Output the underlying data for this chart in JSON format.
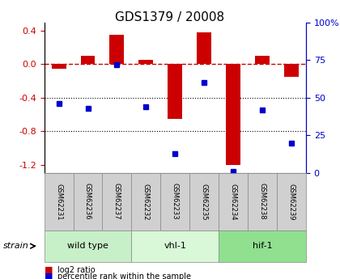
{
  "title": "GDS1379 / 20008",
  "samples": [
    "GSM62231",
    "GSM62236",
    "GSM62237",
    "GSM62232",
    "GSM62233",
    "GSM62235",
    "GSM62234",
    "GSM62238",
    "GSM62239"
  ],
  "log2_ratio": [
    -0.05,
    0.1,
    0.35,
    0.05,
    -0.65,
    0.38,
    -1.2,
    0.1,
    -0.15
  ],
  "percentile_rank": [
    46,
    43,
    72,
    44,
    13,
    60,
    1,
    42,
    20
  ],
  "groups": [
    {
      "label": "wild type",
      "start": 0,
      "end": 3,
      "color": "#c8f0c8"
    },
    {
      "label": "vhl-1",
      "start": 3,
      "end": 6,
      "color": "#d8f8d8"
    },
    {
      "label": "hif-1",
      "start": 6,
      "end": 9,
      "color": "#90e090"
    }
  ],
  "ylim_left": [
    -1.3,
    0.5
  ],
  "ylim_right": [
    0,
    100
  ],
  "yticks_left": [
    0.4,
    0.0,
    -0.4,
    -0.8,
    -1.2
  ],
  "yticks_right": [
    100,
    75,
    50,
    25,
    0
  ],
  "ytick_right_labels": [
    "100%",
    "75",
    "50",
    "25",
    "0"
  ],
  "left_color": "#cc0000",
  "right_color": "#0000cc",
  "bar_color": "#cc0000",
  "dot_color": "#0000cc",
  "hline_color": "#cc0000",
  "grid_color": "black",
  "bar_width": 0.5,
  "legend_log2": "log2 ratio",
  "legend_pct": "percentile rank within the sample",
  "sample_box_color": "#d0d0d0",
  "sample_box_edge": "#888888"
}
